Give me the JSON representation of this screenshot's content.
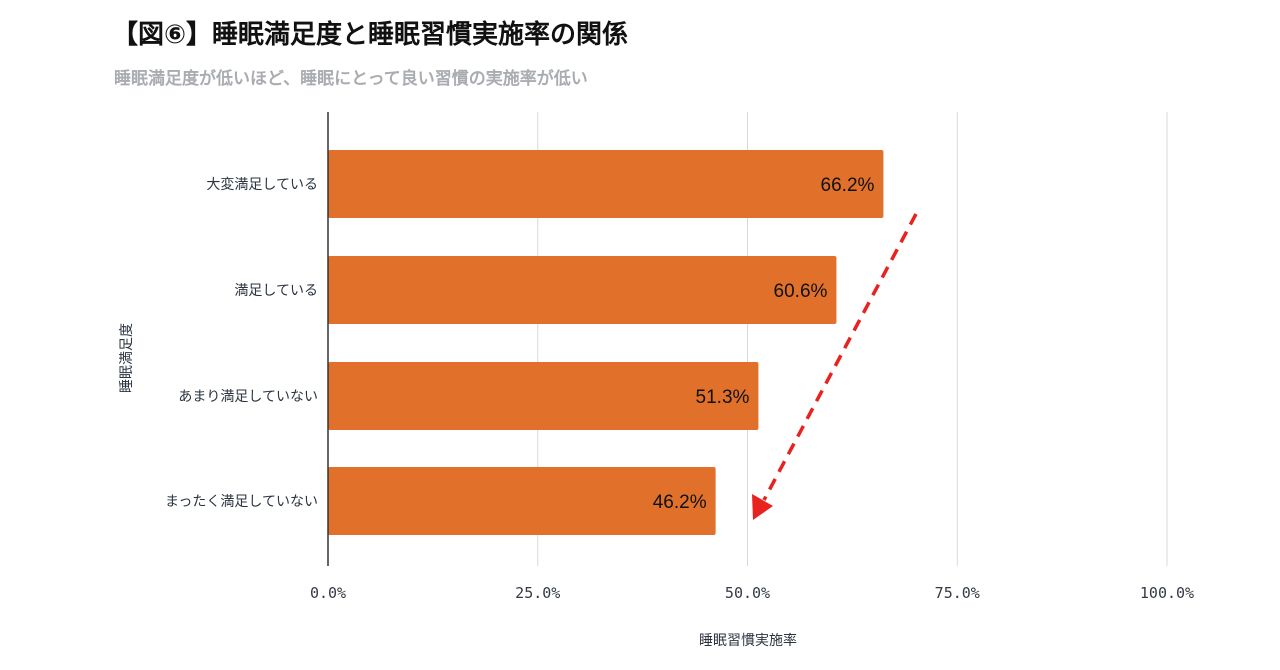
{
  "title": "【図⑥】睡眠満足度と睡眠習慣実施率の関係",
  "subtitle": "睡眠満足度が低いほど、睡眠にとって良い習慣の実施率が低い",
  "colors": {
    "bar": "#e0702a",
    "grid": "#d9d9d9",
    "axis": "#333333",
    "arrow": "#e8231f",
    "title": "#111111",
    "subtitle": "#a9acb1"
  },
  "chart_data": {
    "type": "bar",
    "orientation": "horizontal",
    "categories": [
      "大変満足している",
      "満足している",
      "あまり満足していない",
      "まったく満足していない"
    ],
    "values": [
      66.2,
      60.6,
      51.3,
      46.2
    ],
    "value_labels": [
      "66.2%",
      "60.6%",
      "51.3%",
      "46.2%"
    ],
    "xlabel": "睡眠習慣実施率",
    "ylabel": "睡眠満足度",
    "xlim": [
      0,
      100
    ],
    "x_ticks": [
      0,
      25,
      50,
      75,
      100
    ],
    "x_tick_labels": [
      "0.0%",
      "25.0%",
      "50.0%",
      "75.0%",
      "100.0%"
    ],
    "grid": "vertical",
    "legend": "none",
    "annotation": "red dashed arrow pointing down-left (decreasing trend)"
  }
}
